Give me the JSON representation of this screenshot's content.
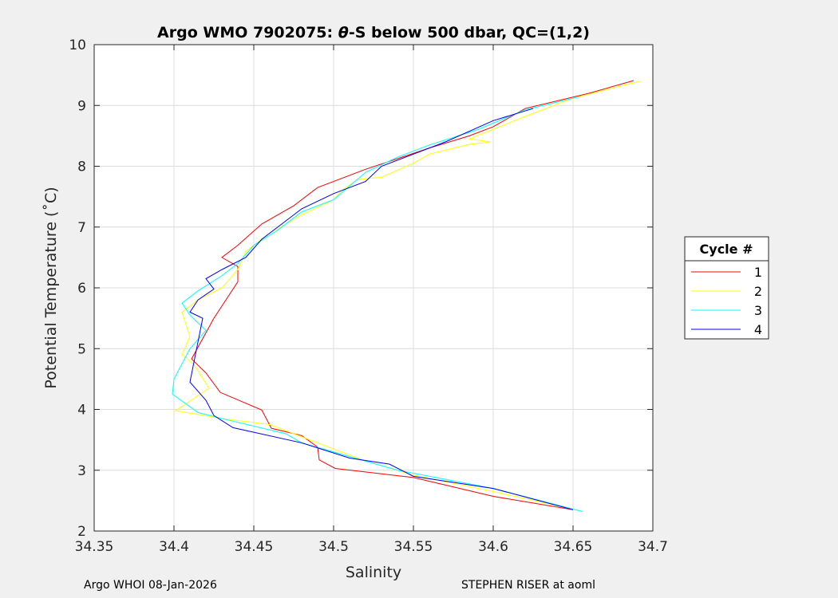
{
  "chart_data": {
    "type": "line",
    "title_prefix": "Argo WMO 7902075: ",
    "title_theta": "θ",
    "title_suffix": "-S below 500 dbar,  QC=(1,2)",
    "xlabel": "Salinity",
    "ylabel": "Potential Temperature (˚C)",
    "xlim": [
      34.35,
      34.7
    ],
    "ylim": [
      2,
      10
    ],
    "xticks": [
      "34.35",
      "34.4",
      "34.45",
      "34.5",
      "34.55",
      "34.6",
      "34.65",
      "34.7"
    ],
    "yticks": [
      "2",
      "3",
      "4",
      "5",
      "6",
      "7",
      "8",
      "9",
      "10"
    ],
    "grid": true,
    "legend": {
      "title": "Cycle #",
      "placement": "outside-right"
    },
    "series": [
      {
        "name": "1",
        "color": "#ff0000",
        "points": [
          [
            34.688,
            9.41
          ],
          [
            34.66,
            9.2
          ],
          [
            34.62,
            8.95
          ],
          [
            34.6,
            8.65
          ],
          [
            34.585,
            8.5
          ],
          [
            34.56,
            8.3
          ],
          [
            34.52,
            7.95
          ],
          [
            34.49,
            7.65
          ],
          [
            34.475,
            7.35
          ],
          [
            34.455,
            7.05
          ],
          [
            34.44,
            6.7
          ],
          [
            34.43,
            6.5
          ],
          [
            34.44,
            6.35
          ],
          [
            34.44,
            6.1
          ],
          [
            34.425,
            5.5
          ],
          [
            34.411,
            4.83
          ],
          [
            34.42,
            4.6
          ],
          [
            34.429,
            4.28
          ],
          [
            34.455,
            3.99
          ],
          [
            34.461,
            3.69
          ],
          [
            34.48,
            3.57
          ],
          [
            34.49,
            3.38
          ],
          [
            34.491,
            3.17
          ],
          [
            34.501,
            3.03
          ],
          [
            34.55,
            2.88
          ],
          [
            34.6,
            2.57
          ],
          [
            34.65,
            2.35
          ]
        ]
      },
      {
        "name": "2",
        "color": "#ffff00",
        "points": [
          [
            34.692,
            9.4
          ],
          [
            34.65,
            9.12
          ],
          [
            34.62,
            8.82
          ],
          [
            34.585,
            8.45
          ],
          [
            34.598,
            8.4
          ],
          [
            34.585,
            8.36
          ],
          [
            34.56,
            8.2
          ],
          [
            34.55,
            8.05
          ],
          [
            34.53,
            7.82
          ],
          [
            34.515,
            7.78
          ],
          [
            34.505,
            7.6
          ],
          [
            34.5,
            7.45
          ],
          [
            34.48,
            7.2
          ],
          [
            34.46,
            6.9
          ],
          [
            34.445,
            6.6
          ],
          [
            34.44,
            6.3
          ],
          [
            34.43,
            6.0
          ],
          [
            34.415,
            5.8
          ],
          [
            34.405,
            5.6
          ],
          [
            34.41,
            5.2
          ],
          [
            34.405,
            4.9
          ],
          [
            34.412,
            4.75
          ],
          [
            34.422,
            4.35
          ],
          [
            34.401,
            3.98
          ],
          [
            34.43,
            3.85
          ],
          [
            34.46,
            3.75
          ],
          [
            34.49,
            3.45
          ],
          [
            34.52,
            3.15
          ],
          [
            34.55,
            2.92
          ],
          [
            34.6,
            2.65
          ],
          [
            34.655,
            2.33
          ]
        ]
      },
      {
        "name": "3",
        "color": "#00ffff",
        "points": [
          [
            34.655,
            9.15
          ],
          [
            34.62,
            8.93
          ],
          [
            34.59,
            8.6
          ],
          [
            34.56,
            8.35
          ],
          [
            34.54,
            8.15
          ],
          [
            34.52,
            7.9
          ],
          [
            34.5,
            7.45
          ],
          [
            34.48,
            7.25
          ],
          [
            34.465,
            6.95
          ],
          [
            34.45,
            6.7
          ],
          [
            34.44,
            6.4
          ],
          [
            34.43,
            6.2
          ],
          [
            34.415,
            5.95
          ],
          [
            34.405,
            5.75
          ],
          [
            34.41,
            5.55
          ],
          [
            34.42,
            5.3
          ],
          [
            34.41,
            5.0
          ],
          [
            34.4,
            4.5
          ],
          [
            34.399,
            4.25
          ],
          [
            34.415,
            3.95
          ],
          [
            34.43,
            3.85
          ],
          [
            34.47,
            3.6
          ],
          [
            34.48,
            3.45
          ],
          [
            34.5,
            3.3
          ],
          [
            34.54,
            3.0
          ],
          [
            34.6,
            2.7
          ],
          [
            34.656,
            2.32
          ]
        ]
      },
      {
        "name": "4",
        "color": "#0000ff",
        "points": [
          [
            34.625,
            8.95
          ],
          [
            34.6,
            8.75
          ],
          [
            34.57,
            8.4
          ],
          [
            34.55,
            8.2
          ],
          [
            34.53,
            8.0
          ],
          [
            34.52,
            7.75
          ],
          [
            34.5,
            7.55
          ],
          [
            34.48,
            7.3
          ],
          [
            34.465,
            7.0
          ],
          [
            34.455,
            6.8
          ],
          [
            34.445,
            6.5
          ],
          [
            34.43,
            6.3
          ],
          [
            34.42,
            6.15
          ],
          [
            34.425,
            5.98
          ],
          [
            34.415,
            5.8
          ],
          [
            34.41,
            5.6
          ],
          [
            34.418,
            5.5
          ],
          [
            34.41,
            4.45
          ],
          [
            34.42,
            4.15
          ],
          [
            34.425,
            3.9
          ],
          [
            34.437,
            3.7
          ],
          [
            34.48,
            3.45
          ],
          [
            34.51,
            3.2
          ],
          [
            34.535,
            3.1
          ],
          [
            34.55,
            2.9
          ],
          [
            34.6,
            2.7
          ],
          [
            34.65,
            2.35
          ]
        ]
      }
    ]
  },
  "footer": {
    "left": "Argo WHOI 08-Jan-2026",
    "right": "STEPHEN RISER at aoml"
  }
}
